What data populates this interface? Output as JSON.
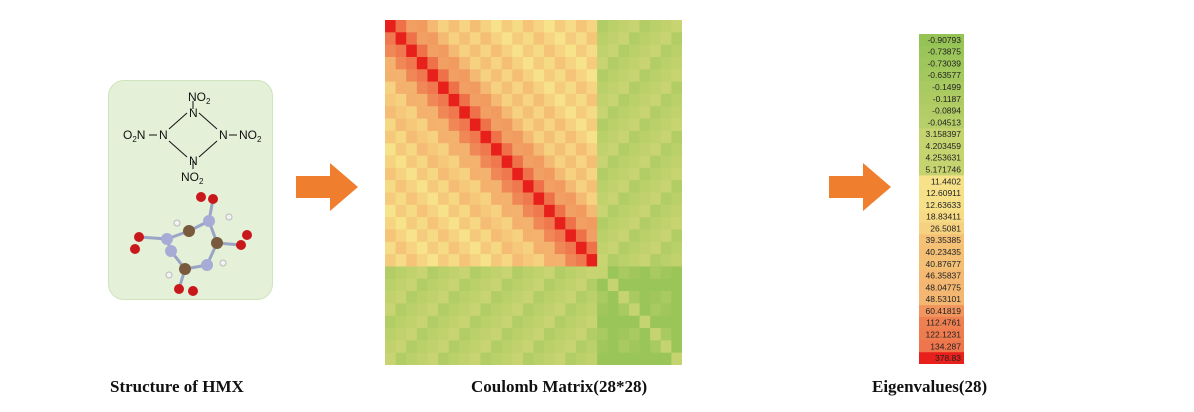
{
  "structure": {
    "caption": "Structure of HMX",
    "formula_labels": {
      "top": "NO",
      "top_sub": "2",
      "left": "O",
      "left_pre": "2",
      "left_n": "N",
      "right": "NO",
      "right_sub": "2",
      "bottom": "NO",
      "bottom_sub": "2",
      "ring_atom": "N"
    }
  },
  "matrix": {
    "caption": "Coulomb Matrix(28*28)",
    "size": 28,
    "colors": {
      "high": "#e8201c",
      "mid": "#f7e48a",
      "low": "#7cbb48"
    }
  },
  "eigen": {
    "caption": "Eigenvalues(28)",
    "values": [
      "-0.90793",
      "-0.73875",
      "-0.73039",
      "-0.63577",
      "-0.1499",
      "-0.1187",
      "-0.0894",
      "-0.04513",
      "3.158397",
      "4.203459",
      "4.253631",
      "5.171746",
      "11.4402",
      "12.60911",
      "12.63633",
      "18.83411",
      "26.5081",
      "39.35385",
      "40.23435",
      "40.87677",
      "46.35837",
      "48.04775",
      "48.53101",
      "60.41819",
      "112.4761",
      "122.1231",
      "134.287",
      "378.83"
    ]
  },
  "arrows": {
    "color": "#ef7f2e"
  }
}
